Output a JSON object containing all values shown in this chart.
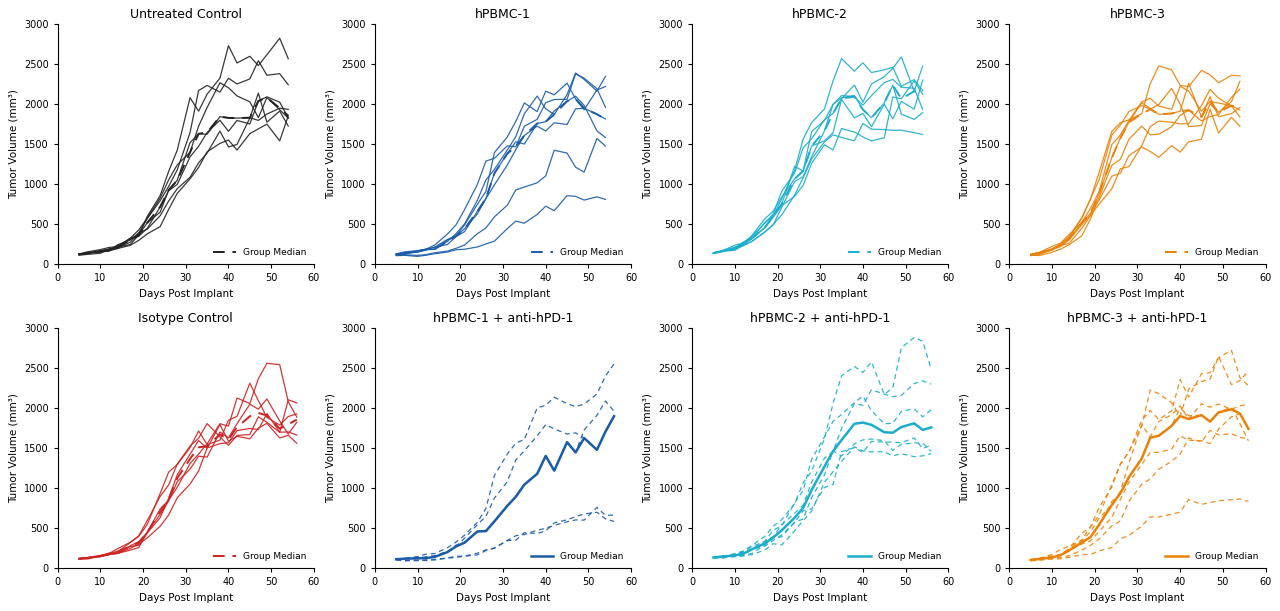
{
  "titles": [
    "Untreated Control",
    "hPBMC-1",
    "hPBMC-2",
    "hPBMC-3",
    "Isotype Control",
    "hPBMC-1 + anti-hPD-1",
    "hPBMC-2 + anti-hPD-1",
    "hPBMC-3 + anti-hPD-1"
  ],
  "colors": [
    "#222222",
    "#1a5ca8",
    "#1aadcc",
    "#e8820a",
    "#cc2222",
    "#1a5ca8",
    "#1aadcc",
    "#e8820a"
  ],
  "ylabel": "Tumor Volume (mm³)",
  "xlabel": "Days Post Implant",
  "ylim": [
    0,
    3000
  ],
  "xlim": [
    0,
    60
  ],
  "yticks": [
    0,
    500,
    1000,
    1500,
    2000,
    2500,
    3000
  ],
  "xticks": [
    0,
    10,
    20,
    30,
    40,
    50,
    60
  ],
  "background_color": "#ffffff"
}
